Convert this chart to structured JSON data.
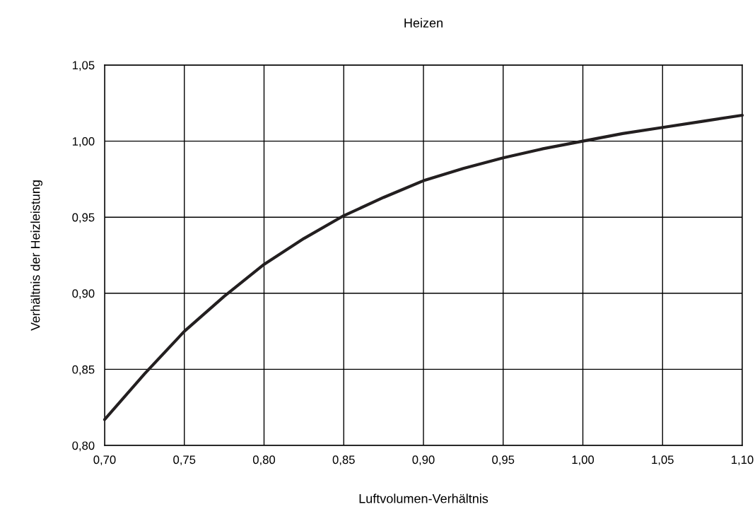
{
  "chart_data": {
    "type": "line",
    "title": "Heizen",
    "xlabel": "Luftvolumen-Verhältnis",
    "ylabel": "Verhältnis der Heizleistung",
    "x": [
      0.7,
      0.725,
      0.75,
      0.775,
      0.8,
      0.825,
      0.85,
      0.875,
      0.9,
      0.925,
      0.95,
      0.975,
      1.0,
      1.025,
      1.05,
      1.075,
      1.1
    ],
    "series": [
      {
        "color": "#231f20",
        "values": [
          0.817,
          0.847,
          0.875,
          0.898,
          0.919,
          0.936,
          0.951,
          0.963,
          0.974,
          0.982,
          0.989,
          0.995,
          1.0,
          1.005,
          1.009,
          1.013,
          1.017
        ]
      }
    ],
    "xlim": [
      0.7,
      1.1
    ],
    "xticks": [
      {
        "value": 0.7,
        "label": "0,70"
      },
      {
        "value": 0.75,
        "label": "0,75"
      },
      {
        "value": 0.8,
        "label": "0,80"
      },
      {
        "value": 0.85,
        "label": "0,85"
      },
      {
        "value": 0.9,
        "label": "0,90"
      },
      {
        "value": 0.95,
        "label": "0,95"
      },
      {
        "value": 1.0,
        "label": "1,00"
      },
      {
        "value": 1.05,
        "label": "1,05"
      },
      {
        "value": 1.1,
        "label": "1,10"
      }
    ],
    "ylim": [
      0.8,
      1.05
    ],
    "yticks": [
      {
        "value": 0.8,
        "label": "0,80"
      },
      {
        "value": 0.85,
        "label": "0,85"
      },
      {
        "value": 0.9,
        "label": "0,90"
      },
      {
        "value": 0.95,
        "label": "0,95"
      },
      {
        "value": 1.0,
        "label": "1,00"
      },
      {
        "value": 1.05,
        "label": "1,05"
      }
    ],
    "grid": true,
    "legend": false,
    "marker": "none",
    "line_style": "solid"
  }
}
